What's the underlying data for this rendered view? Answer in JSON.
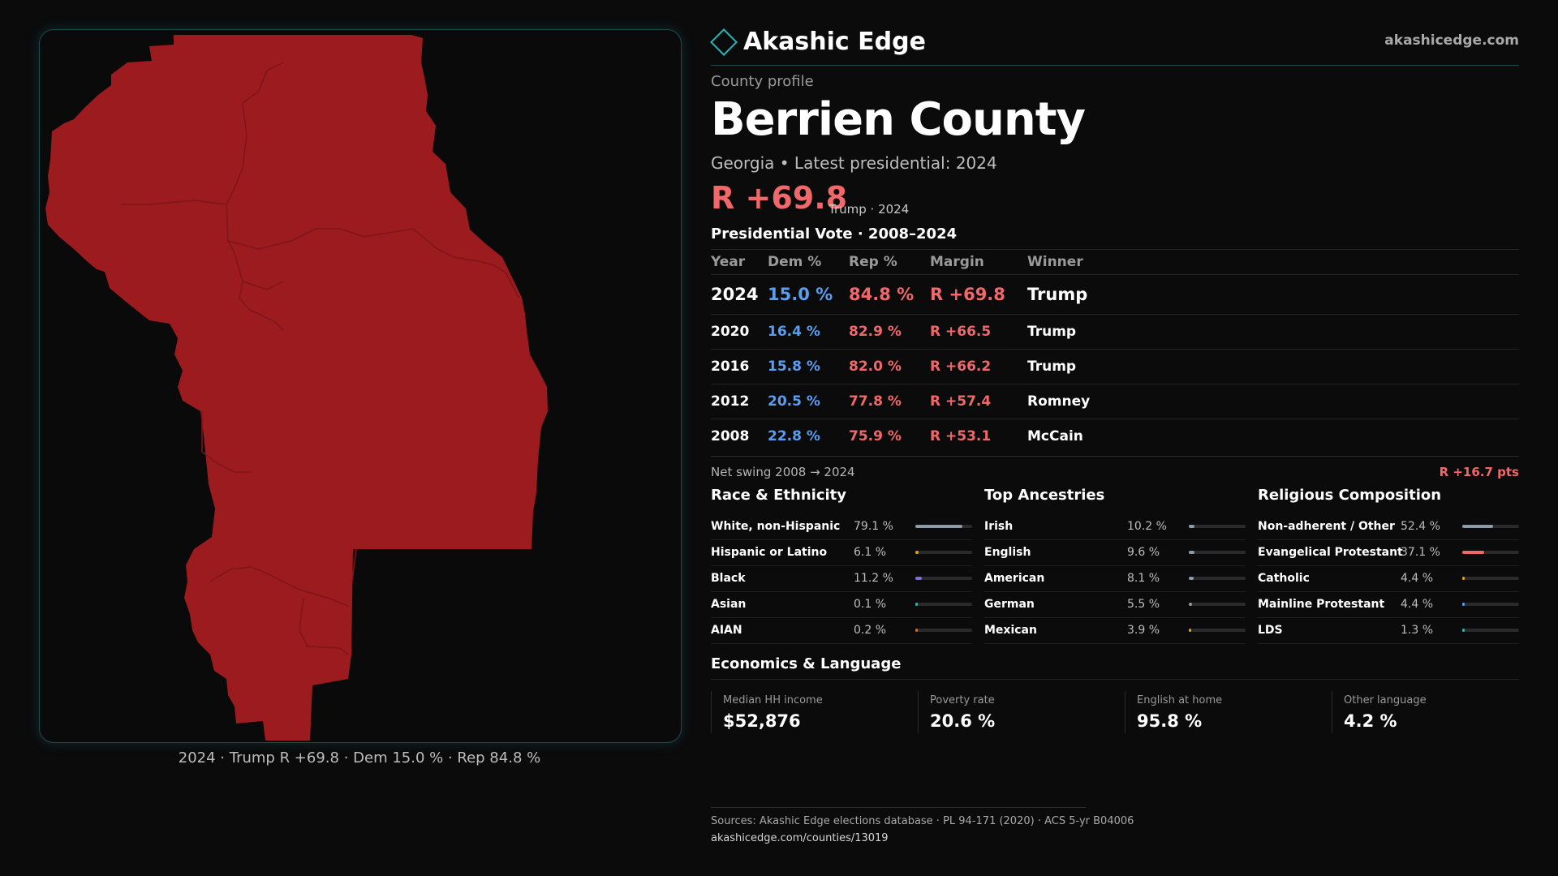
{
  "map": {
    "fill_color": "#9c1b1f",
    "border_color": "#1d4a4e",
    "caption": "2024 · Trump R +69.8 · Dem 15.0 % · Rep 84.8 %"
  },
  "header": {
    "brand": "Akashic Edge",
    "site": "akashicedge.com",
    "kicker": "County profile",
    "title": "Berrien County",
    "subtitle": "Georgia • Latest presidential: 2024",
    "margin": "R +69.8",
    "margin_note": "Trump · 2024"
  },
  "vote": {
    "heading": "Presidential Vote · 2008–2024",
    "columns": [
      "Year",
      "Dem %",
      "Rep %",
      "Margin",
      "Winner"
    ],
    "rows": [
      {
        "year": "2024",
        "dem": "15.0 %",
        "rep": "84.8 %",
        "margin": "R +69.8",
        "winner": "Trump"
      },
      {
        "year": "2020",
        "dem": "16.4 %",
        "rep": "82.9 %",
        "margin": "R +66.5",
        "winner": "Trump"
      },
      {
        "year": "2016",
        "dem": "15.8 %",
        "rep": "82.0 %",
        "margin": "R +66.2",
        "winner": "Trump"
      },
      {
        "year": "2012",
        "dem": "20.5 %",
        "rep": "77.8 %",
        "margin": "R +57.4",
        "winner": "Romney"
      },
      {
        "year": "2008",
        "dem": "22.8 %",
        "rep": "75.9 %",
        "margin": "R +53.1",
        "winner": "McCain"
      }
    ],
    "swing_label": "Net swing 2008 → 2024",
    "swing_value": "R +16.7 pts",
    "colors": {
      "dem": "#5b9df0",
      "rep": "#f0686a"
    }
  },
  "race": {
    "heading": "Race & Ethnicity",
    "rows": [
      {
        "label": "White, non-Hispanic",
        "value": "79.1 %",
        "pct": 79.1,
        "color": "#8f9aa8"
      },
      {
        "label": "Hispanic or Latino",
        "value": "6.1 %",
        "pct": 6.1,
        "color": "#e0a020"
      },
      {
        "label": "Black",
        "value": "11.2 %",
        "pct": 11.2,
        "color": "#7b6fe0"
      },
      {
        "label": "Asian",
        "value": "0.1 %",
        "pct": 0.1,
        "color": "#3fb0a0"
      },
      {
        "label": "AIAN",
        "value": "0.2 %",
        "pct": 0.2,
        "color": "#c07040"
      }
    ]
  },
  "ancestry": {
    "heading": "Top Ancestries",
    "rows": [
      {
        "label": "Irish",
        "value": "10.2 %",
        "pct": 10.2,
        "color": "#8f9aa8"
      },
      {
        "label": "English",
        "value": "9.6 %",
        "pct": 9.6,
        "color": "#8f9aa8"
      },
      {
        "label": "American",
        "value": "8.1 %",
        "pct": 8.1,
        "color": "#8f9aa8"
      },
      {
        "label": "German",
        "value": "5.5 %",
        "pct": 5.5,
        "color": "#8f9aa8"
      },
      {
        "label": "Mexican",
        "value": "3.9 %",
        "pct": 3.9,
        "color": "#e0a020"
      }
    ]
  },
  "religion": {
    "heading": "Religious Composition",
    "rows": [
      {
        "label": "Non-adherent / Other",
        "value": "52.4 %",
        "pct": 52.4,
        "color": "#8f9aa8"
      },
      {
        "label": "Evangelical Protestant",
        "value": "37.1 %",
        "pct": 37.1,
        "color": "#f0686a"
      },
      {
        "label": "Catholic",
        "value": "4.4 %",
        "pct": 4.4,
        "color": "#e0a020"
      },
      {
        "label": "Mainline Protestant",
        "value": "4.4 %",
        "pct": 4.4,
        "color": "#5b9df0"
      },
      {
        "label": "LDS",
        "value": "1.3 %",
        "pct": 1.3,
        "color": "#3fb0a0"
      }
    ]
  },
  "economics": {
    "heading": "Economics & Language",
    "items": [
      {
        "label": "Median HH income",
        "value": "$52,876"
      },
      {
        "label": "Poverty rate",
        "value": "20.6 %"
      },
      {
        "label": "English at home",
        "value": "95.8 %"
      },
      {
        "label": "Other language",
        "value": "4.2 %"
      }
    ]
  },
  "footer": {
    "sources": "Sources: Akashic Edge elections database · PL 94-171 (2020) · ACS 5-yr B04006",
    "url": "akashicedge.com/counties/13019"
  }
}
